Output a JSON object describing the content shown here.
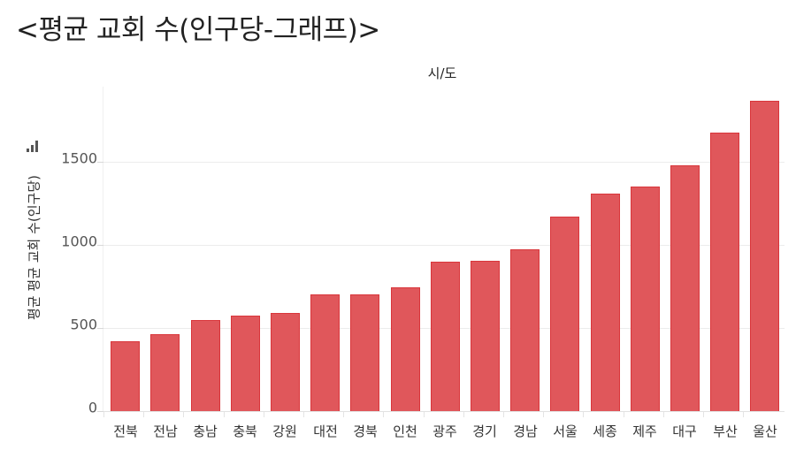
{
  "page": {
    "title": "<평균 교회 수(인구당-그래프)>"
  },
  "chart_data": {
    "type": "bar",
    "title": "<평균 교회 수(인구당-그래프)>",
    "column_header": "시/도",
    "xlabel": "시/도",
    "ylabel": "평균 평균 교회 수(인구당)",
    "ylim": [
      0,
      1950
    ],
    "yticks": [
      0,
      500,
      1000,
      1500
    ],
    "grid": true,
    "legend": null,
    "bar_color": "#e0575b",
    "bar_border_color": "#d9363b",
    "categories": [
      "전북",
      "전남",
      "충남",
      "충북",
      "강원",
      "대전",
      "경북",
      "인천",
      "광주",
      "경기",
      "경남",
      "서울",
      "세종",
      "제주",
      "대구",
      "부산",
      "울산"
    ],
    "values": [
      420,
      463,
      548,
      574,
      590,
      702,
      702,
      745,
      899,
      904,
      973,
      1170,
      1309,
      1351,
      1479,
      1676,
      1867
    ]
  },
  "axis": {
    "sort_icon": "sort-descending-bars-icon"
  }
}
